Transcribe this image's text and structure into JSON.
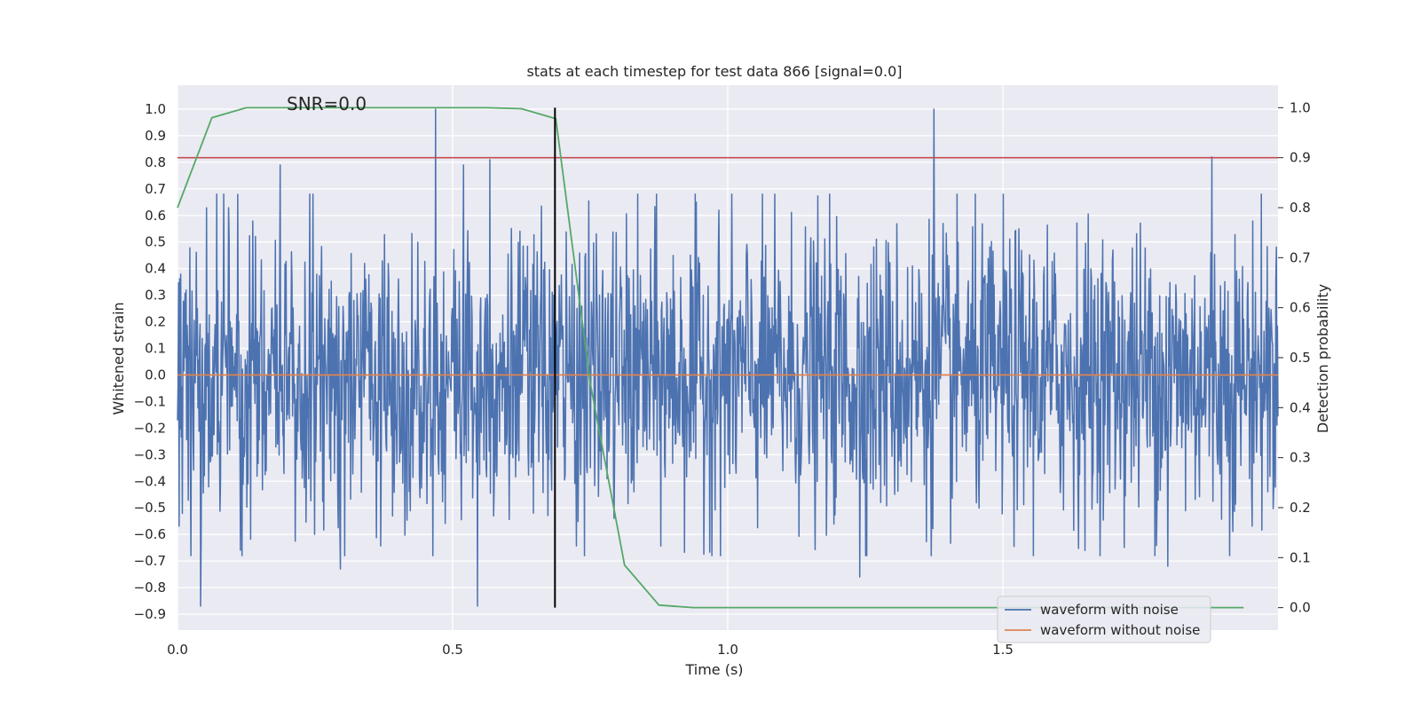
{
  "chart_data": {
    "type": "line",
    "title": "stats at each timestep for test data 866 [signal=0.0]",
    "xlabel": "Time (s)",
    "ylabel": "Whitened strain",
    "y2label": "Detection probability",
    "xlim": [
      0.0,
      2.0
    ],
    "ylim": [
      -0.96,
      1.09
    ],
    "y2lim": [
      -0.045,
      1.045
    ],
    "xticks": [
      "0.0",
      "0.5",
      "1.0",
      "1.5"
    ],
    "xtick_values": [
      0.0,
      0.5,
      1.0,
      1.5
    ],
    "yticks": [
      "−0.9",
      "−0.8",
      "−0.7",
      "−0.6",
      "−0.5",
      "−0.4",
      "−0.3",
      "−0.2",
      "−0.1",
      "0.0",
      "0.1",
      "0.2",
      "0.3",
      "0.4",
      "0.5",
      "0.6",
      "0.7",
      "0.8",
      "0.9",
      "1.0"
    ],
    "ytick_values": [
      -0.9,
      -0.8,
      -0.7,
      -0.6,
      -0.5,
      -0.4,
      -0.3,
      -0.2,
      -0.1,
      0.0,
      0.1,
      0.2,
      0.3,
      0.4,
      0.5,
      0.6,
      0.7,
      0.8,
      0.9,
      1.0
    ],
    "y2ticks": [
      "0.0",
      "0.1",
      "0.2",
      "0.3",
      "0.4",
      "0.5",
      "0.6",
      "0.7",
      "0.8",
      "0.9",
      "1.0"
    ],
    "y2tick_values": [
      0.0,
      0.1,
      0.2,
      0.3,
      0.4,
      0.5,
      0.6,
      0.7,
      0.8,
      0.9,
      1.0
    ],
    "grid": true,
    "legend_position": "lower-right",
    "annotation": "SNR=0.0",
    "series": [
      {
        "name": "waveform with noise",
        "color": "#4c72b0",
        "axis": "left",
        "noise_std": 0.27,
        "n_samples": 2048,
        "peaks": [
          [
            0.469,
            1.0
          ],
          [
            1.375,
            1.0
          ],
          [
            0.187,
            0.79
          ],
          [
            0.52,
            0.79
          ],
          [
            0.568,
            0.81
          ],
          [
            1.88,
            0.82
          ],
          [
            0.042,
            -0.87
          ],
          [
            0.545,
            -0.87
          ],
          [
            0.296,
            -0.73
          ],
          [
            1.8,
            -0.72
          ],
          [
            1.24,
            -0.76
          ]
        ]
      },
      {
        "name": "waveform without noise",
        "color": "#dd8452",
        "axis": "left",
        "x": [
          0.0,
          2.0
        ],
        "y": [
          0.0,
          0.0
        ]
      },
      {
        "color": "#55a868",
        "axis": "right",
        "x": [
          0.0,
          0.0625,
          0.125,
          0.1875,
          0.25,
          0.3125,
          0.375,
          0.4375,
          0.5,
          0.5625,
          0.625,
          0.6875,
          0.75,
          0.8125,
          0.875,
          0.9375,
          1.0,
          1.0625,
          1.125,
          1.1875,
          1.25,
          1.3125,
          1.375,
          1.4375,
          1.5,
          1.5625,
          1.625,
          1.6875,
          1.75,
          1.8125,
          1.875,
          1.9375
        ],
        "y": [
          0.8,
          0.98,
          1.0,
          1.0,
          1.0,
          1.0,
          1.0,
          1.0,
          1.0,
          1.0,
          0.998,
          0.978,
          0.45,
          0.085,
          0.005,
          0.0,
          0.0,
          0.0,
          0.0,
          0.0,
          0.0,
          0.0,
          0.0,
          0.0,
          0.0,
          0.0,
          0.0,
          0.0,
          0.0,
          0.0,
          0.0,
          0.0
        ]
      }
    ],
    "threshold_line": {
      "color": "#c44e52",
      "axis": "right",
      "y": 0.9
    },
    "marker_line": {
      "color": "#000000",
      "x": 0.686,
      "y2_from": 0.0,
      "y2_to": 1.0
    }
  }
}
